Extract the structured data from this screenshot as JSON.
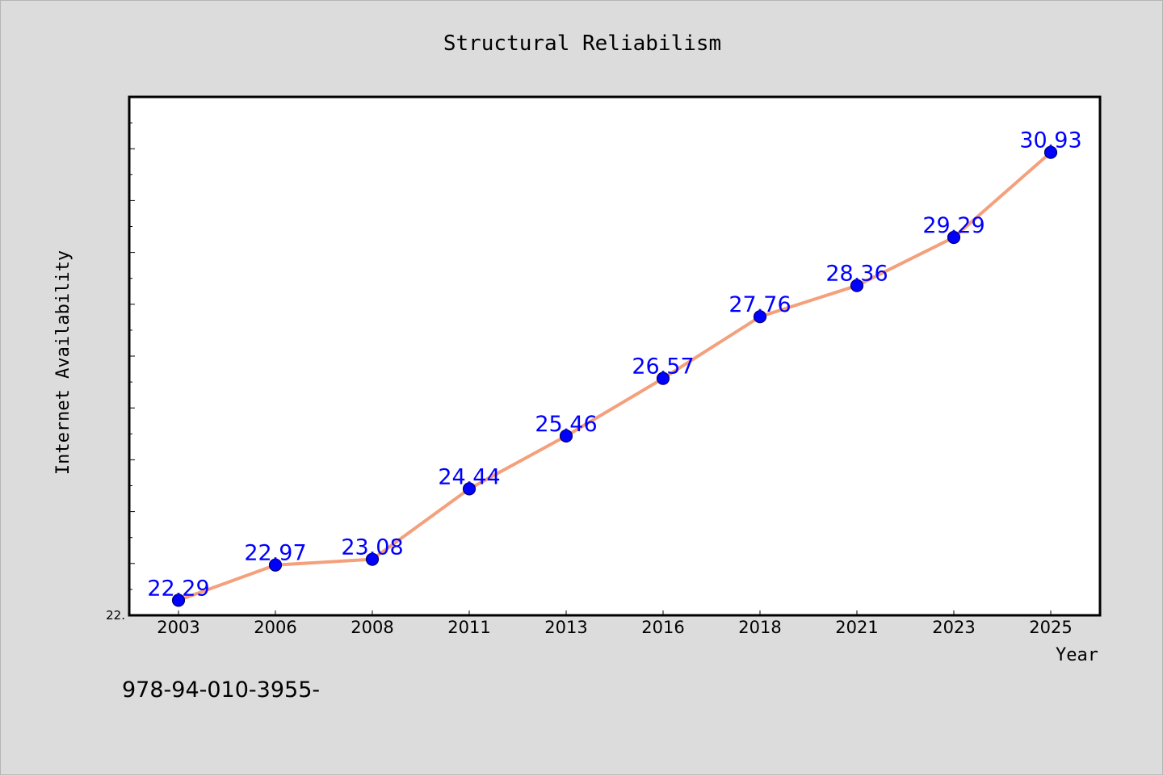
{
  "chart_data": {
    "type": "line",
    "title": "Structural Reliabilism",
    "xlabel": "Year",
    "ylabel": "Internet Availability",
    "categories": [
      "2003",
      "2006",
      "2008",
      "2011",
      "2013",
      "2016",
      "2018",
      "2021",
      "2023",
      "2025"
    ],
    "series": [
      {
        "values": [
          22.29,
          22.97,
          23.08,
          24.44,
          25.46,
          26.57,
          27.76,
          28.36,
          29.29,
          30.93
        ],
        "data_labels": [
          "22.29",
          "22.97",
          "23.08",
          "24.44",
          "25.46",
          "26.57",
          "27.76",
          "28.36",
          "29.29",
          "30.93"
        ],
        "line_color": "#f4a07c",
        "marker_color": "#0000ff"
      }
    ],
    "y_tick_label": "22.",
    "ylim": [
      22.0,
      32.0
    ],
    "grid": false,
    "legend": "none",
    "label_color": "#0000ff"
  },
  "footer_text": "978-94-010-3955-"
}
